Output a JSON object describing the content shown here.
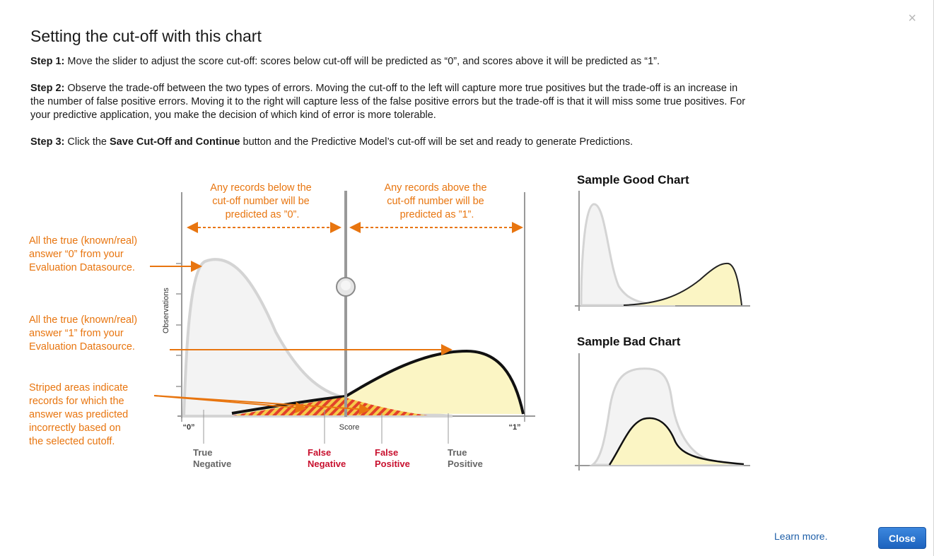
{
  "dialog": {
    "title": "Setting the cut-off with this chart",
    "close_icon": "×"
  },
  "steps": {
    "step1_label": "Step 1:",
    "step1_text": " Move the slider to adjust the score cut-off: scores below cut-off will be predicted as “0”, and scores above it will be predicted as “1”.",
    "step2_label": "Step 2:",
    "step2_text": " Observe the trade-off between the two types of errors. Moving the cut-off to the left will capture more true positives but the trade-off is an increase in the number of false positive errors. Moving it to the right will capture less of the false positive errors but the trade-off is that it will miss some true positives. For your predictive application, you make the decision of which kind of error is more tolerable.",
    "step3_label": "Step 3:",
    "step3_pre": " Click the ",
    "step3_bold": "Save Cut-Off and Continue",
    "step3_post": " button and the Predictive Model’s cut-off will be set and ready to generate Predictions."
  },
  "chart": {
    "below_note": [
      "Any records below the",
      "cut-off number will be",
      "predicted as ”0”."
    ],
    "above_note": [
      "Any records above the",
      "cut-off number will be",
      "predicted as ”1”."
    ],
    "left_ann_0": [
      "All the true (known/real)",
      "answer “0” from your",
      "Evaluation Datasource."
    ],
    "left_ann_1": [
      "All the true (known/real)",
      "answer “1” from your",
      "Evaluation Datasource."
    ],
    "left_ann_striped": [
      "Striped areas indicate",
      "records for which the",
      "answer was predicted",
      "incorrectly based on",
      "the selected cutoff."
    ],
    "ylabel": "Observations",
    "xlabel": "Score",
    "x_min_label": "“0”",
    "x_max_label": "“1”",
    "true_negative": [
      "True",
      "Negative"
    ],
    "false_negative": [
      "False",
      "Negative"
    ],
    "false_positive": [
      "False",
      "Positive"
    ],
    "true_positive": [
      "True",
      "Positive"
    ],
    "colors": {
      "annotation": "#e8750f",
      "error_label": "#c8102e",
      "neutral_label": "#666666",
      "negative_fill": "#f3f3f3",
      "positive_fill": "#fbf5c4"
    }
  },
  "samples": {
    "good_title": "Sample Good Chart",
    "bad_title": "Sample Bad Chart"
  },
  "footer": {
    "learn_more": "Learn more.",
    "close_label": "Close"
  }
}
